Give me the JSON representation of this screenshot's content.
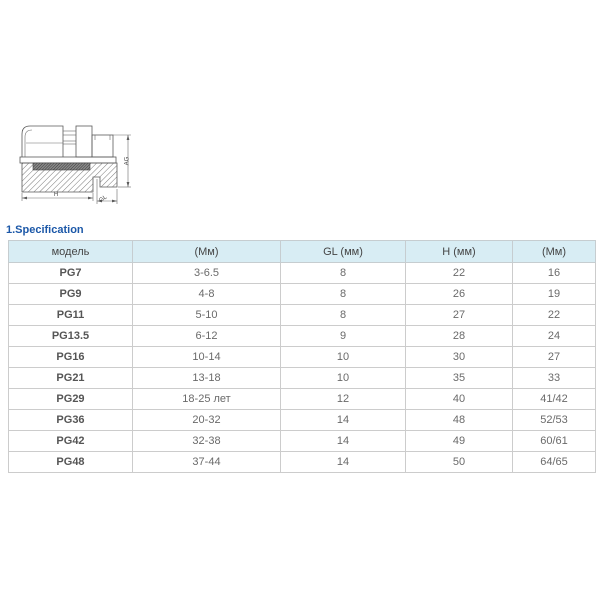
{
  "section_title": "1.Specification",
  "diagram": {
    "labels": {
      "h": "H",
      "gl": "GL",
      "ag": "AG"
    }
  },
  "table": {
    "headers": [
      "модель",
      "(Мм)",
      "GL (мм)",
      "H (мм)",
      "(Мм)"
    ],
    "rows": [
      [
        "PG7",
        "3-6.5",
        "8",
        "22",
        "16"
      ],
      [
        "PG9",
        "4-8",
        "8",
        "26",
        "19"
      ],
      [
        "PG11",
        "5-10",
        "8",
        "27",
        "22"
      ],
      [
        "PG13.5",
        "6-12",
        "9",
        "28",
        "24"
      ],
      [
        "PG16",
        "10-14",
        "10",
        "30",
        "27"
      ],
      [
        "PG21",
        "13-18",
        "10",
        "35",
        "33"
      ],
      [
        "PG29",
        "18-25 лет",
        "12",
        "40",
        "41/42"
      ],
      [
        "PG36",
        "20-32",
        "14",
        "48",
        "52/53"
      ],
      [
        "PG42",
        "32-38",
        "14",
        "49",
        "60/61"
      ],
      [
        "PG48",
        "37-44",
        "14",
        "50",
        "64/65"
      ]
    ]
  },
  "colors": {
    "title_blue": "#1c58a8",
    "header_bg": "#d8edf4",
    "border": "#cccccc",
    "line_art": "#5a5a5a"
  }
}
